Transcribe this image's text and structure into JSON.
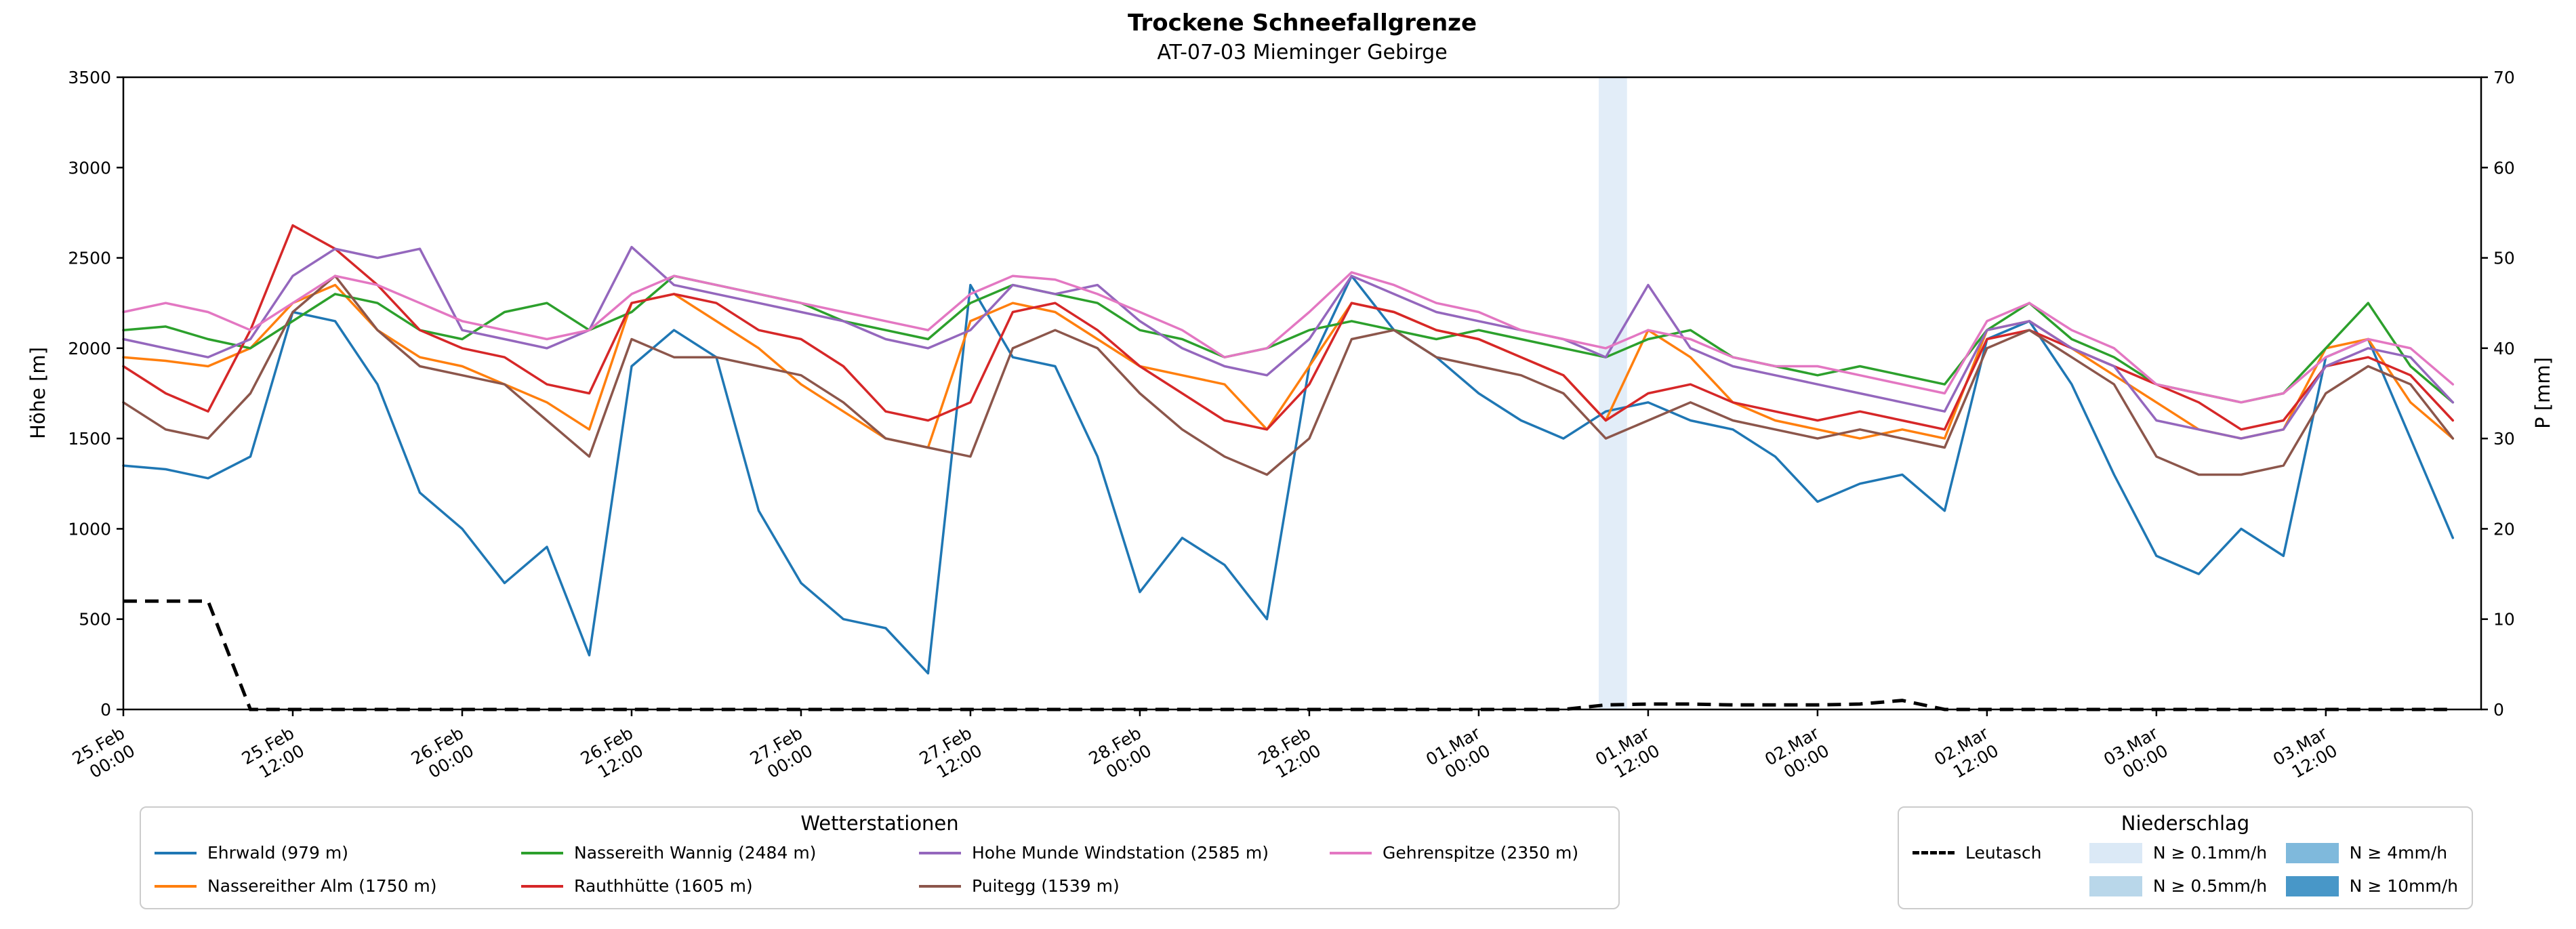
{
  "header": {
    "title": "Trockene Schneefallgrenze",
    "subtitle": "AT-07-03 Mieminger Gebirge"
  },
  "legends": {
    "stations_title": "Wetterstationen",
    "precip_title": "Niederschlag"
  },
  "chart_data": {
    "type": "line",
    "title": "Trockene Schneefallgrenze",
    "subtitle": "AT-07-03 Mieminger Gebirge",
    "xlabel": "",
    "ylabel": "Höhe [m]",
    "y2label": "P [mm]",
    "ylim": [
      0,
      3500
    ],
    "y2lim": [
      0,
      70
    ],
    "y_ticks": [
      0,
      500,
      1000,
      1500,
      2000,
      2500,
      3000,
      3500
    ],
    "y2_ticks": [
      0,
      10,
      20,
      30,
      40,
      50,
      60,
      70
    ],
    "grid": false,
    "legend_position": "below",
    "xlim_hours": [
      0,
      167
    ],
    "x_ticks": [
      {
        "h": 0,
        "date": "25.Feb",
        "time": "00:00"
      },
      {
        "h": 12,
        "date": "25.Feb",
        "time": "12:00"
      },
      {
        "h": 24,
        "date": "26.Feb",
        "time": "00:00"
      },
      {
        "h": 36,
        "date": "26.Feb",
        "time": "12:00"
      },
      {
        "h": 48,
        "date": "27.Feb",
        "time": "00:00"
      },
      {
        "h": 60,
        "date": "27.Feb",
        "time": "12:00"
      },
      {
        "h": 72,
        "date": "28.Feb",
        "time": "00:00"
      },
      {
        "h": 84,
        "date": "28.Feb",
        "time": "12:00"
      },
      {
        "h": 96,
        "date": "01.Mar",
        "time": "00:00"
      },
      {
        "h": 108,
        "date": "01.Mar",
        "time": "12:00"
      },
      {
        "h": 120,
        "date": "02.Mar",
        "time": "00:00"
      },
      {
        "h": 132,
        "date": "02.Mar",
        "time": "12:00"
      },
      {
        "h": 144,
        "date": "03.Mar",
        "time": "00:00"
      },
      {
        "h": 156,
        "date": "03.Mar",
        "time": "12:00"
      }
    ],
    "x_hours": [
      0,
      3,
      6,
      9,
      12,
      15,
      18,
      21,
      24,
      27,
      30,
      33,
      36,
      39,
      42,
      45,
      48,
      51,
      54,
      57,
      60,
      63,
      66,
      69,
      72,
      75,
      78,
      81,
      84,
      87,
      90,
      93,
      96,
      99,
      102,
      105,
      108,
      111,
      114,
      117,
      120,
      123,
      126,
      129,
      132,
      135,
      138,
      141,
      144,
      147,
      150,
      153,
      156,
      159,
      162,
      165
    ],
    "series": [
      {
        "name": "ehrwald",
        "label": "Ehrwald (979 m)",
        "color": "#1f77b4",
        "axis": "left",
        "values": [
          1350,
          1330,
          1280,
          1400,
          2200,
          2150,
          1800,
          1200,
          1000,
          700,
          900,
          300,
          1900,
          2100,
          1950,
          1100,
          700,
          500,
          450,
          200,
          2350,
          1950,
          1900,
          1400,
          650,
          950,
          800,
          500,
          1900,
          2400,
          2100,
          1950,
          1750,
          1600,
          1500,
          1650,
          1700,
          1600,
          1550,
          1400,
          1150,
          1250,
          1300,
          1100,
          2050,
          2150,
          1800,
          1300,
          850,
          750,
          1000,
          850,
          1950,
          2050,
          1500,
          950
        ]
      },
      {
        "name": "nassereither-alm",
        "label": "Nassereither Alm (1750 m)",
        "color": "#ff7f0e",
        "axis": "left",
        "values": [
          1950,
          1930,
          1900,
          2000,
          2250,
          2350,
          2100,
          1950,
          1900,
          1800,
          1700,
          1550,
          2250,
          2300,
          2150,
          2000,
          1800,
          1650,
          1500,
          1450,
          2150,
          2250,
          2200,
          2050,
          1900,
          1850,
          1800,
          1550,
          1900,
          2250,
          2200,
          2100,
          2050,
          1950,
          1850,
          1600,
          2100,
          1950,
          1700,
          1600,
          1550,
          1500,
          1550,
          1500,
          2100,
          2150,
          2000,
          1850,
          1700,
          1550,
          1500,
          1550,
          2000,
          2050,
          1700,
          1500
        ]
      },
      {
        "name": "nassereith-wannig",
        "label": "Nassereith Wannig (2484 m)",
        "color": "#2ca02c",
        "axis": "left",
        "values": [
          2100,
          2120,
          2050,
          2000,
          2150,
          2300,
          2250,
          2100,
          2050,
          2200,
          2250,
          2100,
          2200,
          2400,
          2350,
          2300,
          2250,
          2150,
          2100,
          2050,
          2250,
          2350,
          2300,
          2250,
          2100,
          2050,
          1950,
          2000,
          2100,
          2150,
          2100,
          2050,
          2100,
          2050,
          2000,
          1950,
          2050,
          2100,
          1950,
          1900,
          1850,
          1900,
          1850,
          1800,
          2100,
          2250,
          2050,
          1950,
          1800,
          1750,
          1700,
          1750,
          2000,
          2250,
          1900,
          1700
        ]
      },
      {
        "name": "rauthhuette",
        "label": "Rauthhütte (1605 m)",
        "color": "#d62728",
        "axis": "left",
        "values": [
          1900,
          1750,
          1650,
          2100,
          2680,
          2550,
          2350,
          2100,
          2000,
          1950,
          1800,
          1750,
          2250,
          2300,
          2250,
          2100,
          2050,
          1900,
          1650,
          1600,
          1700,
          2200,
          2250,
          2100,
          1900,
          1750,
          1600,
          1550,
          1800,
          2250,
          2200,
          2100,
          2050,
          1950,
          1850,
          1600,
          1750,
          1800,
          1700,
          1650,
          1600,
          1650,
          1600,
          1550,
          2050,
          2100,
          2000,
          1900,
          1800,
          1700,
          1550,
          1600,
          1900,
          1950,
          1850,
          1600
        ]
      },
      {
        "name": "hohe-munde-windstation",
        "label": "Hohe Munde Windstation (2585 m)",
        "color": "#9467bd",
        "axis": "left",
        "values": [
          2050,
          2000,
          1950,
          2050,
          2400,
          2550,
          2500,
          2550,
          2100,
          2050,
          2000,
          2100,
          2560,
          2350,
          2300,
          2250,
          2200,
          2150,
          2050,
          2000,
          2100,
          2350,
          2300,
          2350,
          2150,
          2000,
          1900,
          1850,
          2050,
          2400,
          2300,
          2200,
          2150,
          2100,
          2050,
          1950,
          2350,
          2000,
          1900,
          1850,
          1800,
          1750,
          1700,
          1650,
          2100,
          2150,
          2000,
          1900,
          1600,
          1550,
          1500,
          1550,
          1900,
          2000,
          1950,
          1700
        ]
      },
      {
        "name": "puitegg",
        "label": "Puitegg (1539 m)",
        "color": "#8c564b",
        "axis": "left",
        "values": [
          1700,
          1550,
          1500,
          1750,
          2200,
          2400,
          2100,
          1900,
          1850,
          1800,
          1600,
          1400,
          2050,
          1950,
          1950,
          1900,
          1850,
          1700,
          1500,
          1450,
          1400,
          2000,
          2100,
          2000,
          1750,
          1550,
          1400,
          1300,
          1500,
          2050,
          2100,
          1950,
          1900,
          1850,
          1750,
          1500,
          1600,
          1700,
          1600,
          1550,
          1500,
          1550,
          1500,
          1450,
          2000,
          2100,
          1950,
          1800,
          1400,
          1300,
          1300,
          1350,
          1750,
          1900,
          1800,
          1500
        ]
      },
      {
        "name": "gehrenspitze",
        "label": "Gehrenspitze (2350 m)",
        "color": "#e377c2",
        "axis": "left",
        "values": [
          2200,
          2250,
          2200,
          2100,
          2250,
          2400,
          2350,
          2250,
          2150,
          2100,
          2050,
          2100,
          2300,
          2400,
          2350,
          2300,
          2250,
          2200,
          2150,
          2100,
          2300,
          2400,
          2380,
          2300,
          2200,
          2100,
          1950,
          2000,
          2200,
          2420,
          2350,
          2250,
          2200,
          2100,
          2050,
          2000,
          2100,
          2050,
          1950,
          1900,
          1900,
          1850,
          1800,
          1750,
          2150,
          2250,
          2100,
          2000,
          1800,
          1750,
          1700,
          1750,
          1950,
          2050,
          2000,
          1800
        ]
      }
    ],
    "leutasch": {
      "name": "leutasch",
      "label": "Leutasch",
      "color": "#000000",
      "style": "dashed",
      "axis": "right",
      "values_mm": [
        12,
        12,
        12,
        0,
        0,
        0,
        0,
        0,
        0,
        0,
        0,
        0,
        0,
        0,
        0,
        0,
        0,
        0,
        0,
        0,
        0,
        0,
        0,
        0,
        0,
        0,
        0,
        0,
        0,
        0,
        0,
        0,
        0,
        0,
        0,
        0.5,
        0.6,
        0.6,
        0.5,
        0.5,
        0.5,
        0.6,
        1,
        0,
        0,
        0,
        0,
        0,
        0,
        0,
        0,
        0,
        0,
        0,
        0,
        0
      ]
    },
    "precip_levels": [
      {
        "label": "N ≥ 0.1mm/h",
        "color": "#dbe9f6"
      },
      {
        "label": "N ≥ 0.5mm/h",
        "color": "#b9d7ea"
      },
      {
        "label": "N ≥ 4mm/h",
        "color": "#7fb9dc"
      },
      {
        "label": "N ≥ 10mm/h",
        "color": "#4897c8"
      }
    ],
    "precip_bands": [
      {
        "start_h": 104.5,
        "end_h": 106.5,
        "level_index": 0
      }
    ]
  }
}
